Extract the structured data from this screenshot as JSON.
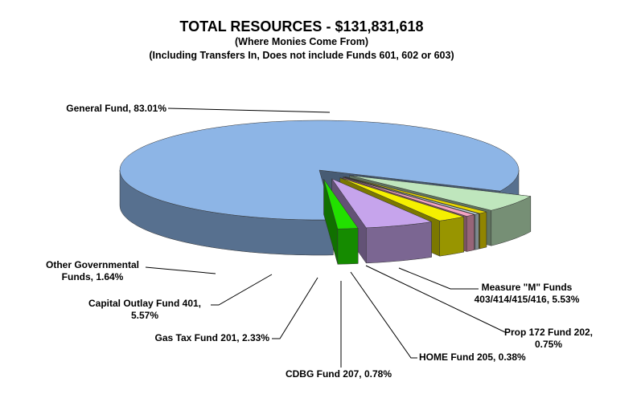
{
  "chart_data": {
    "type": "pie",
    "title": "TOTAL RESOURCES - $131,831,618",
    "subtitle": "(Where Monies Come From)",
    "subtitle2": "(Including Transfers In, Does not include Funds 601, 602 or 603)",
    "slices": [
      {
        "name": "General Fund",
        "value": 83.01,
        "label": [
          "General Fund, 83.01%"
        ],
        "color": "#8db5e6"
      },
      {
        "name": "Measure \"M\" Funds 403/414/415/416",
        "value": 5.53,
        "label": [
          "Measure \"M\" Funds",
          "403/414/415/416, 5.53%"
        ],
        "color": "#bfe6bd"
      },
      {
        "name": "Prop 172 Fund 202",
        "value": 0.75,
        "label": [
          "Prop 172 Fund 202,",
          "0.75%"
        ],
        "color": "#e8d700"
      },
      {
        "name": "HOME Fund 205",
        "value": 0.38,
        "label": [
          "HOME Fund 205, 0.38%"
        ],
        "color": "#c9dde8"
      },
      {
        "name": "CDBG Fund 207",
        "value": 0.78,
        "label": [
          "CDBG Fund 207, 0.78%"
        ],
        "color": "#f4a3c2"
      },
      {
        "name": "Gas Tax Fund 201",
        "value": 2.33,
        "label": [
          "Gas Tax Fund 201, 2.33%"
        ],
        "color": "#f5f000"
      },
      {
        "name": "Capital Outlay Fund 401",
        "value": 5.57,
        "label": [
          "Capital Outlay Fund 401,",
          "5.57%"
        ],
        "color": "#c6a4ec"
      },
      {
        "name": "Other Governmental Funds",
        "value": 1.64,
        "label": [
          "Other Governmental",
          "Funds, 1.64%"
        ],
        "color": "#22e000"
      }
    ]
  }
}
